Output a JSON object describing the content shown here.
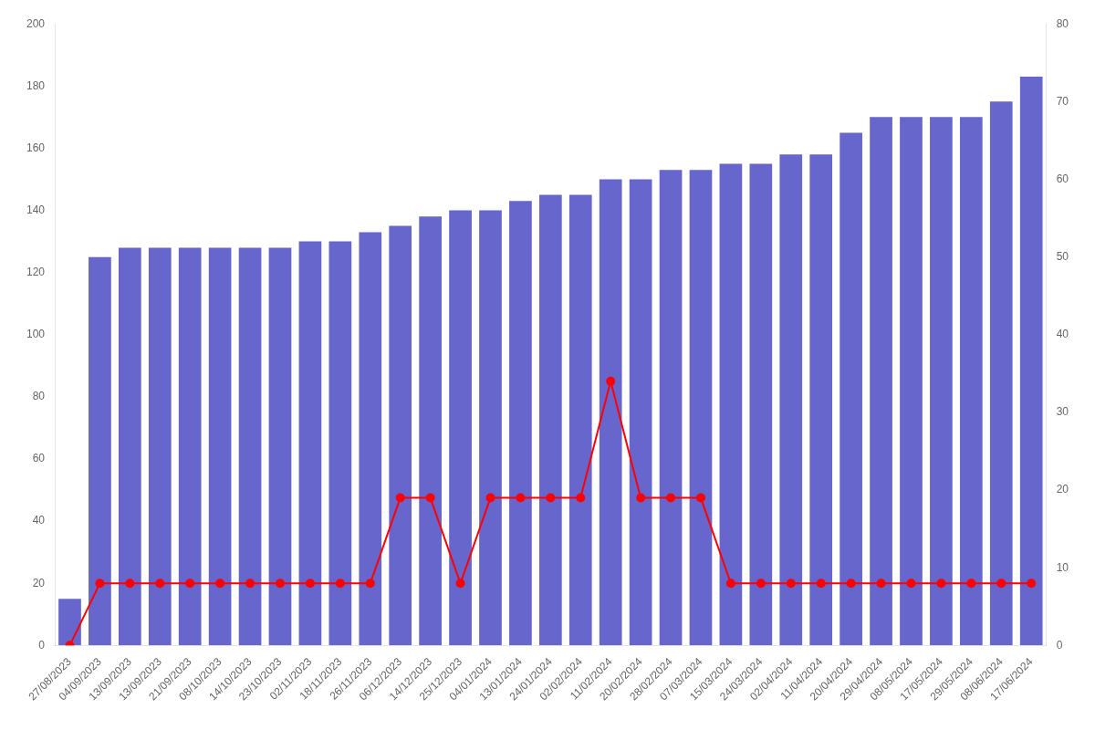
{
  "chart_data": {
    "type": "bar",
    "categories": [
      "27/08/2023",
      "04/09/2023",
      "13/09/2023",
      "13/09/2023",
      "21/09/2023",
      "08/10/2023",
      "14/10/2023",
      "23/10/2023",
      "02/11/2023",
      "18/11/2023",
      "26/11/2023",
      "06/12/2023",
      "14/12/2023",
      "25/12/2023",
      "04/01/2024",
      "13/01/2024",
      "24/01/2024",
      "02/02/2024",
      "11/02/2024",
      "20/02/2024",
      "28/02/2024",
      "07/03/2024",
      "15/03/2024",
      "24/03/2024",
      "02/04/2024",
      "11/04/2024",
      "20/04/2024",
      "29/04/2024",
      "08/05/2024",
      "17/05/2024",
      "29/05/2024",
      "08/06/2024",
      "17/06/2024"
    ],
    "series": [
      {
        "type": "bar",
        "color": "#6666cc",
        "values": [
          15,
          125,
          128,
          128,
          128,
          128,
          128,
          128,
          130,
          130,
          133,
          135,
          138,
          140,
          140,
          143,
          145,
          145,
          150,
          150,
          153,
          153,
          155,
          155,
          158,
          158,
          165,
          170,
          170,
          170,
          170,
          175,
          183
        ]
      },
      {
        "type": "line",
        "color": "#ff0000",
        "marker": "circle",
        "axis": "y2",
        "values": [
          0,
          8,
          8,
          8,
          8,
          8,
          8,
          8,
          8,
          8,
          8,
          19,
          19,
          8,
          19,
          19,
          19,
          19,
          34,
          19,
          19,
          19,
          8,
          8,
          8,
          8,
          8,
          8,
          8,
          8,
          8,
          8,
          8
        ]
      }
    ],
    "ylim": [
      0,
      200
    ],
    "yticks": [
      0,
      20,
      40,
      60,
      80,
      100,
      120,
      140,
      160,
      180,
      200
    ],
    "y2lim": [
      0,
      80
    ],
    "y2ticks": [
      0,
      10,
      20,
      30,
      40,
      50,
      60,
      70,
      80
    ],
    "grid": false
  }
}
